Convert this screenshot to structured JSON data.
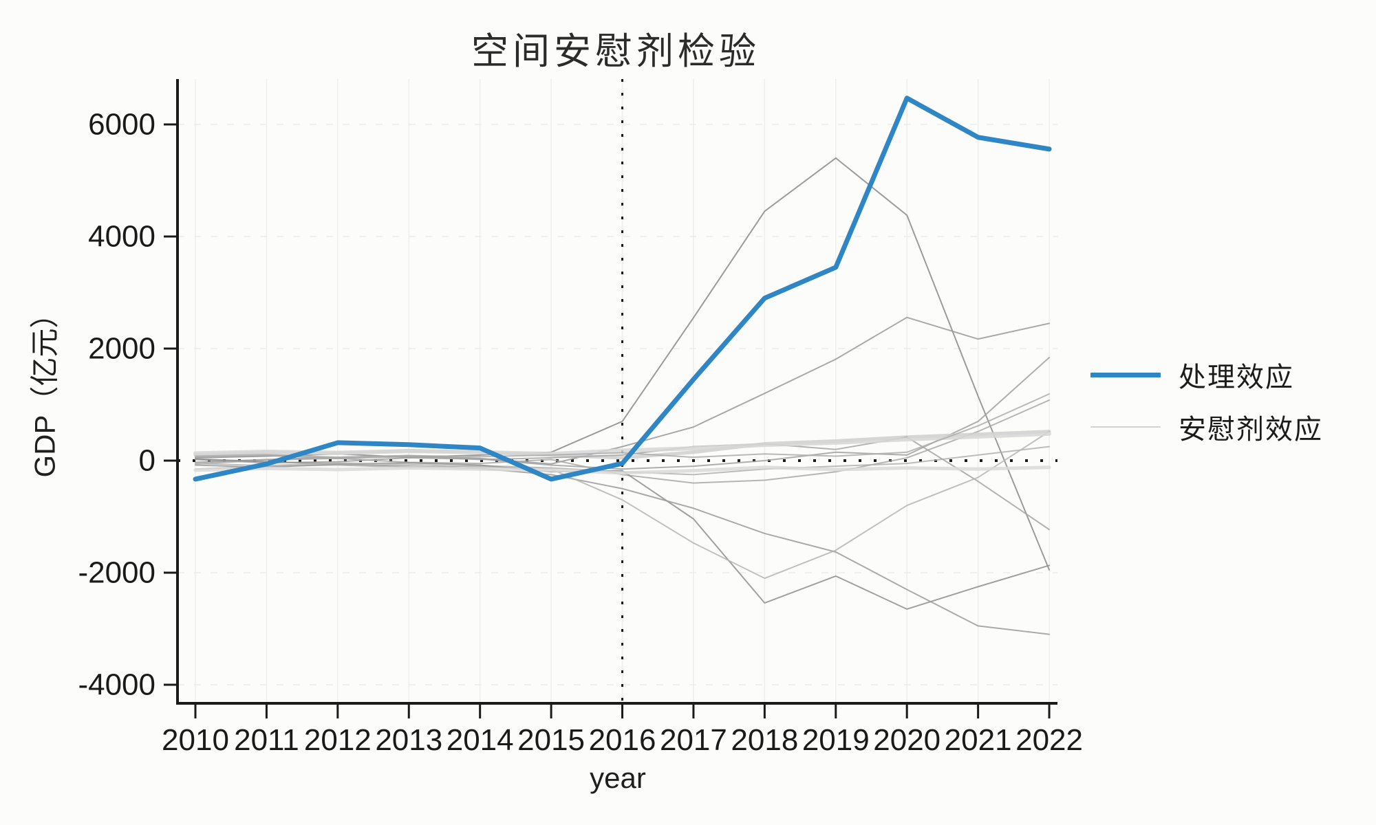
{
  "page": {
    "background": "#fcfcfa",
    "colors": {
      "treatment_blue": "#2e86c4",
      "placebo_gray": "#9a9a9a",
      "placebo_light_gray": "#d2d2d2",
      "axis": "#1a1a1a",
      "gridline": "#ececе8",
      "text": "#1f1f1f"
    }
  },
  "chart": {
    "title": "空间安慰剂检验",
    "x_label": "year",
    "y_label": "GDP（亿元）",
    "legend": [
      {
        "label": "处理效应",
        "color": "#2e86c4",
        "width": 7
      },
      {
        "label": "安慰剂效应",
        "color": "#d2d2d2",
        "width": 2
      }
    ]
  },
  "chart_data": {
    "type": "line",
    "title": "空间安慰剂检验",
    "xlabel": "year",
    "ylabel": "GDP（亿元）",
    "legend_position": "right",
    "grid": "faint",
    "xlim": [
      2010,
      2022
    ],
    "ylim": [
      -4330,
      6800
    ],
    "x_ticks": [
      2010,
      2011,
      2012,
      2013,
      2014,
      2015,
      2016,
      2017,
      2018,
      2019,
      2020,
      2021,
      2022
    ],
    "y_ticks": [
      6000,
      4000,
      2000,
      0,
      -2000,
      -4000
    ],
    "reference_lines": {
      "vertical_x": 2016,
      "horizontal_y": 0,
      "style": "dotted",
      "color": "#1a1a1a"
    },
    "x": [
      2010,
      2011,
      2012,
      2013,
      2014,
      2015,
      2016,
      2017,
      2018,
      2019,
      2020,
      2021,
      2022
    ],
    "series": [
      {
        "name": "处理效应",
        "role": "treatment",
        "color": "#2e86c4",
        "width": 7,
        "values": [
          -330,
          -60,
          320,
          285,
          225,
          -330,
          -50,
          1450,
          2900,
          3450,
          6470,
          5770,
          5560
        ]
      },
      {
        "name": "安慰剂效应",
        "role": "placebo",
        "color": "#8a8a8a",
        "width": 2,
        "values": [
          50,
          80,
          120,
          60,
          100,
          150,
          700,
          2550,
          4450,
          5400,
          4380,
          1150,
          -1950
        ]
      },
      {
        "name": "安慰剂效应",
        "role": "placebo",
        "color": "#9a9a9a",
        "width": 2,
        "values": [
          -30,
          20,
          60,
          90,
          40,
          -60,
          250,
          600,
          1200,
          1810,
          2556,
          2170,
          2450
        ]
      },
      {
        "name": "安慰剂效应",
        "role": "placebo",
        "color": "#a0a0a0",
        "width": 2,
        "values": [
          20,
          -40,
          -20,
          50,
          30,
          -80,
          -150,
          -100,
          0,
          150,
          100,
          700,
          1840
        ]
      },
      {
        "name": "安慰剂效应",
        "role": "placebo",
        "color": "#a8a8a8",
        "width": 2,
        "values": [
          -60,
          10,
          40,
          -30,
          -50,
          20,
          -250,
          -400,
          -350,
          -200,
          50,
          520,
          1080
        ]
      },
      {
        "name": "安慰剂效应",
        "role": "placebo",
        "color": "#cfcfcf",
        "width": 5,
        "values": [
          100,
          150,
          130,
          180,
          150,
          100,
          50,
          150,
          300,
          350,
          420,
          470,
          520
        ]
      },
      {
        "name": "安慰剂效应",
        "role": "placebo",
        "color": "#b0b0b0",
        "width": 2,
        "values": [
          -150,
          -100,
          -80,
          -120,
          -90,
          -130,
          -200,
          -250,
          -150,
          -100,
          -50,
          100,
          250
        ]
      },
      {
        "name": "安慰剂效应",
        "role": "placebo",
        "color": "#8f8f8f",
        "width": 2,
        "values": [
          30,
          -20,
          -60,
          -40,
          -80,
          -200,
          -180,
          -1040,
          -2540,
          -2060,
          -2650,
          -2250,
          -1870
        ]
      },
      {
        "name": "安慰剂效应",
        "role": "placebo",
        "color": "#9b9b9b",
        "width": 2,
        "values": [
          -80,
          -120,
          -60,
          -100,
          -140,
          -250,
          -500,
          -850,
          -1300,
          -1630,
          -2300,
          -2950,
          -3100
        ]
      },
      {
        "name": "安慰剂效应",
        "role": "placebo",
        "color": "#a5a5a5",
        "width": 2,
        "values": [
          60,
          90,
          40,
          70,
          20,
          50,
          100,
          250,
          300,
          200,
          420,
          -370,
          -1230
        ]
      },
      {
        "name": "安慰剂效应",
        "role": "placebo",
        "color": "#b5b5b5",
        "width": 2,
        "values": [
          -50,
          -90,
          -40,
          -70,
          -110,
          -150,
          -700,
          -1470,
          -2100,
          -1600,
          -800,
          -300,
          520
        ]
      },
      {
        "name": "安慰剂效应",
        "role": "placebo",
        "color": "#d6d6d6",
        "width": 6,
        "values": [
          130,
          160,
          140,
          170,
          150,
          120,
          180,
          220,
          280,
          320,
          380,
          430,
          480
        ]
      },
      {
        "name": "安慰剂效应",
        "role": "placebo",
        "color": "#d9d9d9",
        "width": 5,
        "values": [
          -170,
          -140,
          -160,
          -130,
          -150,
          -170,
          -220,
          -180,
          -120,
          -160,
          -130,
          -150,
          -120
        ]
      },
      {
        "name": "安慰剂效应",
        "role": "placebo",
        "color": "#adadad",
        "width": 2,
        "values": [
          80,
          110,
          60,
          90,
          70,
          100,
          140,
          60,
          120,
          80,
          150,
          620,
          1190
        ]
      }
    ]
  }
}
